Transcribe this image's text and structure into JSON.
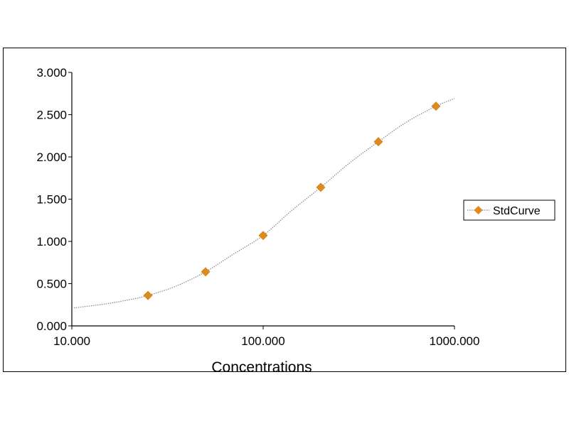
{
  "chart_data": {
    "type": "scatter",
    "xlabel": "Concentrations",
    "ylabel": "",
    "x_scale": "log",
    "xlim": [
      10,
      1000
    ],
    "ylim": [
      0,
      3
    ],
    "x_ticks": [
      "10.000",
      "100.000",
      "1000.000"
    ],
    "y_ticks": [
      "0.000",
      "0.500",
      "1.000",
      "1.500",
      "2.000",
      "2.500",
      "3.000"
    ],
    "grid": false,
    "legend_position": "right",
    "series": [
      {
        "name": "StdCurve",
        "color": "#e08a1e",
        "marker": "diamond",
        "x": [
          25,
          50,
          100,
          200,
          400,
          800
        ],
        "y": [
          0.36,
          0.64,
          1.07,
          1.64,
          2.18,
          2.6
        ]
      }
    ],
    "fit_curve": {
      "style": "dotted",
      "color": "#888888",
      "x": [
        10,
        15,
        20,
        25,
        35,
        50,
        70,
        100,
        140,
        200,
        280,
        400,
        560,
        800,
        1000
      ],
      "y": [
        0.21,
        0.26,
        0.31,
        0.36,
        0.47,
        0.64,
        0.85,
        1.07,
        1.36,
        1.64,
        1.92,
        2.18,
        2.41,
        2.6,
        2.69
      ]
    }
  }
}
